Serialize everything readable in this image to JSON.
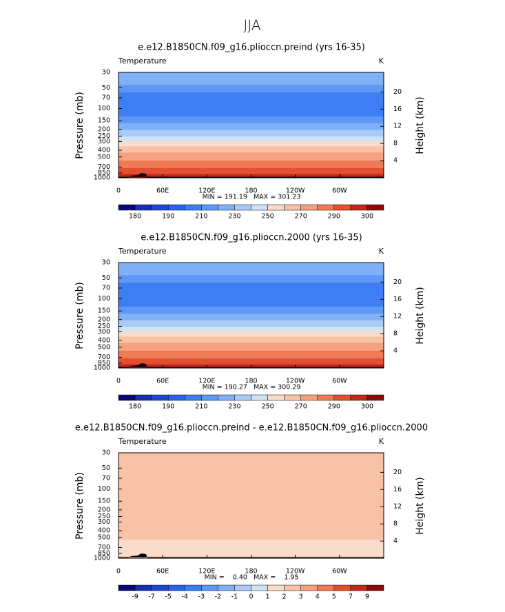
{
  "title": "JJA",
  "panels": [
    {
      "title": "e.e12.B1850CN.f09_g16.plioccn.preind (yrs 16-35)",
      "label": "Temperature",
      "units": "K",
      "y_label": "Pressure (mb)",
      "y2_label": "Height (km)",
      "ylim": [
        1000,
        30
      ],
      "yticks": [
        30,
        50,
        70,
        100,
        150,
        200,
        250,
        300,
        400,
        500,
        700,
        850,
        1000
      ],
      "y2ticks": [
        4,
        8,
        12,
        16,
        20
      ],
      "xlim": [
        0,
        360
      ],
      "xticks": [
        0,
        {
          "value": 60,
          "label": "60E"
        },
        {
          "value": 120,
          "label": "120E"
        },
        180,
        {
          "value": 240,
          "label": "120W"
        },
        {
          "value": 300,
          "label": "60W"
        }
      ],
      "stats": "MIN = 191.19   MAX = 301.23",
      "colorbar": {
        "colors": [
          "#08087a",
          "#1530b0",
          "#1e48d4",
          "#2b62ea",
          "#3f7ef2",
          "#5e98f5",
          "#80b1f6",
          "#a8cbf7",
          "#d2e2f5",
          "#f9dccb",
          "#f8c2a8",
          "#f5a07e",
          "#ef7a56",
          "#e2502f",
          "#c2271a",
          "#8b0b0b"
        ],
        "labels": [
          180,
          190,
          210,
          230,
          250,
          270,
          290,
          300
        ]
      },
      "bands": [
        [
          30,
          45,
          "#80b1f6"
        ],
        [
          45,
          58,
          "#5e98f5"
        ],
        [
          58,
          130,
          "#3f7ef2"
        ],
        [
          130,
          165,
          "#5e98f5"
        ],
        [
          165,
          205,
          "#80b1f6"
        ],
        [
          205,
          255,
          "#a8cbf7"
        ],
        [
          255,
          300,
          "#d2e2f5"
        ],
        [
          300,
          350,
          "#f9dccb"
        ],
        [
          350,
          430,
          "#f8c2a8"
        ],
        [
          430,
          560,
          "#f5a07e"
        ],
        [
          560,
          720,
          "#ef7a56"
        ],
        [
          720,
          880,
          "#e2502f"
        ],
        [
          880,
          1000,
          "#c2271a"
        ]
      ]
    },
    {
      "title": "e.e12.B1850CN.f09_g16.plioccn.2000 (yrs 16-35)",
      "label": "Temperature",
      "units": "K",
      "y_label": "Pressure (mb)",
      "y2_label": "Height (km)",
      "ylim": [
        1000,
        30
      ],
      "yticks": [
        30,
        50,
        70,
        100,
        150,
        200,
        250,
        300,
        400,
        500,
        700,
        850,
        1000
      ],
      "y2ticks": [
        4,
        8,
        12,
        16,
        20
      ],
      "xlim": [
        0,
        360
      ],
      "xticks": [
        0,
        {
          "value": 60,
          "label": "60E"
        },
        {
          "value": 120,
          "label": "120E"
        },
        180,
        {
          "value": 240,
          "label": "120W"
        },
        {
          "value": 300,
          "label": "60W"
        }
      ],
      "stats": "MIN = 190.27   MAX = 300.29",
      "colorbar": {
        "colors": [
          "#08087a",
          "#1530b0",
          "#1e48d4",
          "#2b62ea",
          "#3f7ef2",
          "#5e98f5",
          "#80b1f6",
          "#a8cbf7",
          "#d2e2f5",
          "#f9dccb",
          "#f8c2a8",
          "#f5a07e",
          "#ef7a56",
          "#e2502f",
          "#c2271a",
          "#8b0b0b"
        ],
        "labels": [
          180,
          190,
          210,
          230,
          250,
          270,
          290,
          300
        ]
      },
      "bands": [
        [
          30,
          45,
          "#80b1f6"
        ],
        [
          45,
          58,
          "#5e98f5"
        ],
        [
          58,
          130,
          "#3f7ef2"
        ],
        [
          130,
          165,
          "#5e98f5"
        ],
        [
          165,
          205,
          "#80b1f6"
        ],
        [
          205,
          255,
          "#a8cbf7"
        ],
        [
          255,
          300,
          "#d2e2f5"
        ],
        [
          300,
          350,
          "#f9dccb"
        ],
        [
          350,
          430,
          "#f8c2a8"
        ],
        [
          430,
          560,
          "#f5a07e"
        ],
        [
          560,
          720,
          "#ef7a56"
        ],
        [
          720,
          880,
          "#e2502f"
        ],
        [
          880,
          1000,
          "#c2271a"
        ]
      ]
    },
    {
      "title": "e.e12.B1850CN.f09_g16.plioccn.preind - e.e12.B1850CN.f09_g16.plioccn.2000",
      "label": "Temperature",
      "units": "K",
      "y_label": "Pressure (mb)",
      "y2_label": "Height (km)",
      "ylim": [
        1000,
        30
      ],
      "yticks": [
        30,
        50,
        70,
        100,
        150,
        200,
        250,
        300,
        400,
        500,
        700,
        850,
        1000
      ],
      "y2ticks": [
        4,
        8,
        12,
        16,
        20
      ],
      "xlim": [
        0,
        360
      ],
      "xticks": [
        0,
        {
          "value": 60,
          "label": "60E"
        },
        {
          "value": 120,
          "label": "120E"
        },
        180,
        {
          "value": 240,
          "label": "120W"
        },
        {
          "value": 300,
          "label": "60W"
        }
      ],
      "stats": "MIN =    0.40   MAX =    1.95",
      "colorbar": {
        "colors": [
          "#08087a",
          "#1530b0",
          "#1e48d4",
          "#2b62ea",
          "#3f7ef2",
          "#5e98f5",
          "#80b1f6",
          "#a8cbf7",
          "#d2e2f5",
          "#f9dccb",
          "#f8c2a8",
          "#f5a07e",
          "#ef7a56",
          "#e2502f",
          "#c2271a",
          "#8b0b0b"
        ],
        "labels": [
          -9,
          -7,
          -5,
          -4,
          -3,
          -2,
          -1,
          0,
          1,
          2,
          3,
          4,
          5,
          7,
          9
        ]
      },
      "bands": [
        [
          30,
          540,
          "#f8c2a8"
        ],
        [
          540,
          930,
          "#f9dccb"
        ],
        [
          930,
          1000,
          "#f8c2a8"
        ]
      ]
    }
  ]
}
